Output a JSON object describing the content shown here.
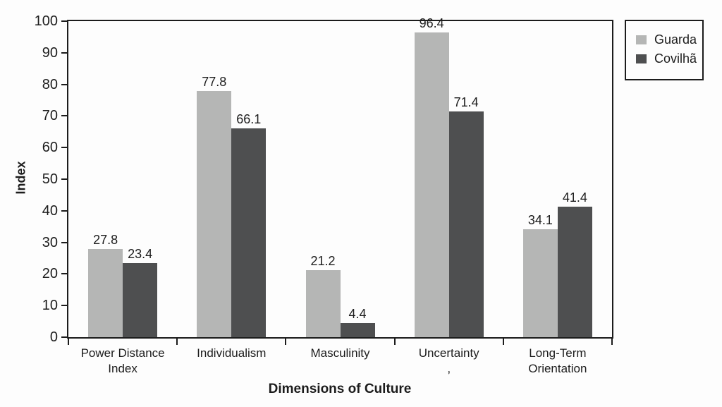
{
  "figure": {
    "background": "#fdfdfd",
    "text_color": "#1c1c1c",
    "axis_color": "#1c1c1c"
  },
  "chart_data": {
    "type": "bar",
    "title": "",
    "xlabel": "Dimensions of Culture",
    "ylabel": "Index",
    "ylim": [
      0,
      100
    ],
    "ytick_step": 10,
    "grid": false,
    "legend_position": "top-right-outside",
    "categories": [
      {
        "lines": [
          "Power Distance",
          "Index"
        ]
      },
      {
        "lines": [
          "Individualism"
        ]
      },
      {
        "lines": [
          "Masculinity"
        ]
      },
      {
        "lines": [
          "Uncertainty",
          ","
        ]
      },
      {
        "lines": [
          "Long-Term",
          "Orientation"
        ]
      }
    ],
    "series": [
      {
        "name": "Guarda",
        "color": "#b5b6b5",
        "values": [
          27.8,
          77.8,
          21.2,
          96.4,
          34.1
        ]
      },
      {
        "name": "Covilhã",
        "color": "#4e4f50",
        "values": [
          23.4,
          66.1,
          4.4,
          71.4,
          41.4
        ]
      }
    ],
    "value_labels_shown": true
  }
}
